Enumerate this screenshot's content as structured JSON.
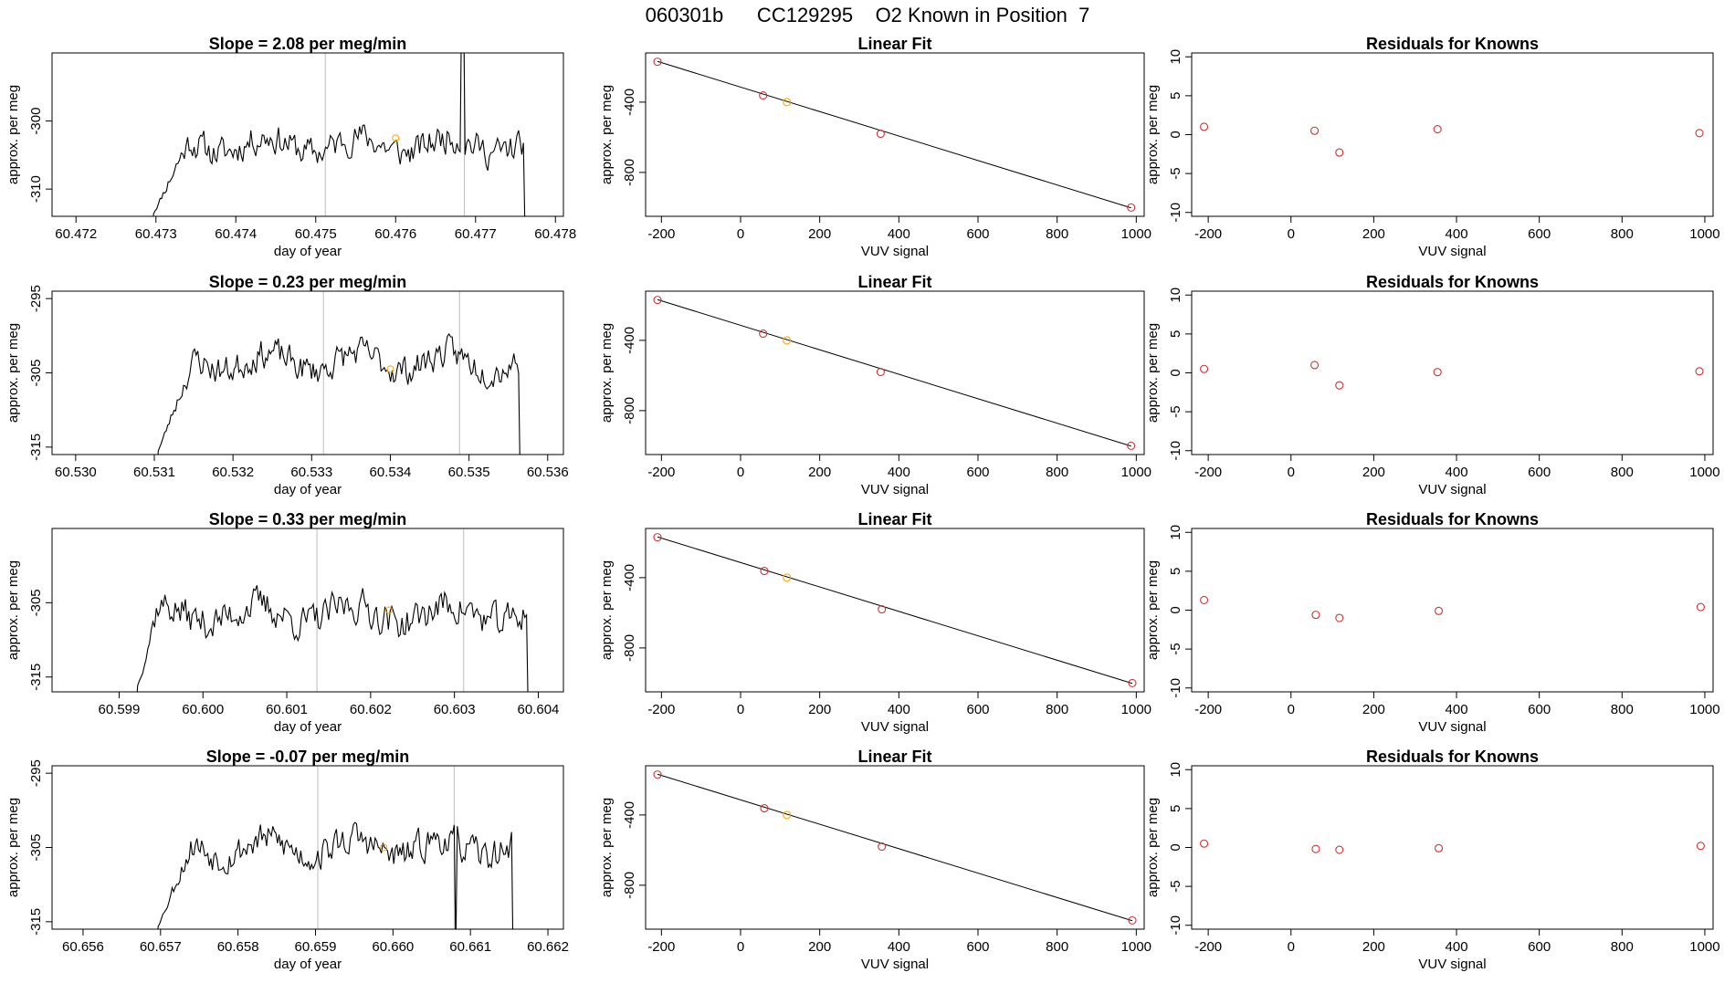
{
  "figure_title": "060301b      CC129295    O2 Known in Position  7",
  "colors": {
    "line": "#000000",
    "known": "#cd3333",
    "highlight": "#ffa500",
    "vline": "#bebebe"
  },
  "chart_data": [
    {
      "type": "line",
      "row": 0,
      "col": 0,
      "title": "Slope =  2.08  per meg/min",
      "xlabel": "day of year",
      "ylabel": "approx. per meg",
      "xlim": [
        60.4717,
        60.4781
      ],
      "ylim": [
        -314,
        -290
      ],
      "xticks": [
        "60.472",
        "60.473",
        "60.474",
        "60.475",
        "60.476",
        "60.477",
        "60.478"
      ],
      "yticks": [
        "-310",
        "-300"
      ],
      "x_start": 60.47295,
      "x_end": 60.47762,
      "baseline": -303.5,
      "noise": 2.2,
      "seed": 11,
      "ramp_end": 60.4735,
      "ramp_from": -314,
      "spike": [
        60.47683,
        -280
      ],
      "vlines": [
        60.47512,
        60.47686
      ],
      "highlight_point": [
        60.476,
        -302.5
      ]
    },
    {
      "type": "scatter",
      "row": 0,
      "col": 1,
      "title": "Linear Fit",
      "xlabel": "VUV signal",
      "ylabel": "approx. per meg",
      "xlim": [
        -240,
        1020
      ],
      "ylim": [
        -1050,
        -120
      ],
      "xticks": [
        "-200",
        "0",
        "200",
        "400",
        "600",
        "800",
        "1000"
      ],
      "yticks": [
        "-800",
        "-400"
      ],
      "x": [
        -210,
        57,
        117,
        354,
        987
      ],
      "y": [
        -170,
        -362,
        -400,
        -580,
        -1000
      ],
      "highlight_index": 2,
      "fit": [
        [
          -210,
          -168
        ],
        [
          987,
          -1002
        ]
      ]
    },
    {
      "type": "scatter",
      "row": 0,
      "col": 2,
      "title": "Residuals for Knowns",
      "xlabel": "VUV signal",
      "ylabel": "approx. per meg",
      "xlim": [
        -240,
        1020
      ],
      "ylim": [
        -10.5,
        10.5
      ],
      "xticks": [
        "-200",
        "0",
        "200",
        "400",
        "600",
        "800",
        "1000"
      ],
      "yticks": [
        "-10",
        "-5",
        "0",
        "5",
        "10"
      ],
      "x": [
        -210,
        57,
        117,
        354,
        987
      ],
      "y": [
        1.0,
        0.5,
        -2.3,
        0.7,
        0.2
      ]
    },
    {
      "type": "line",
      "row": 1,
      "col": 0,
      "title": "Slope =  0.23  per meg/min",
      "xlabel": "day of year",
      "ylabel": "approx. per meg",
      "xlim": [
        60.5297,
        60.5362
      ],
      "ylim": [
        -316,
        -294
      ],
      "xticks": [
        "60.530",
        "60.531",
        "60.532",
        "60.533",
        "60.534",
        "60.535",
        "60.536"
      ],
      "yticks": [
        "-315",
        "-305",
        "-295"
      ],
      "x_start": 60.53103,
      "x_end": 60.53565,
      "baseline": -303.5,
      "noise": 2.0,
      "seed": 23,
      "ramp_end": 60.5316,
      "ramp_from": -316,
      "vlines": [
        60.53315,
        60.53488
      ],
      "highlight_point": [
        60.534,
        -304.5
      ]
    },
    {
      "type": "scatter",
      "row": 1,
      "col": 1,
      "title": "Linear Fit",
      "xlabel": "VUV signal",
      "ylabel": "approx. per meg",
      "xlim": [
        -240,
        1020
      ],
      "ylim": [
        -1050,
        -120
      ],
      "xticks": [
        "-200",
        "0",
        "200",
        "400",
        "600",
        "800",
        "1000"
      ],
      "yticks": [
        "-800",
        "-400"
      ],
      "x": [
        -210,
        57,
        117,
        354,
        987
      ],
      "y": [
        -170,
        -362,
        -400,
        -580,
        -1000
      ],
      "highlight_index": 2,
      "fit": [
        [
          -210,
          -168
        ],
        [
          987,
          -1002
        ]
      ]
    },
    {
      "type": "scatter",
      "row": 1,
      "col": 2,
      "title": "Residuals for Knowns",
      "xlabel": "VUV signal",
      "ylabel": "approx. per meg",
      "xlim": [
        -240,
        1020
      ],
      "ylim": [
        -10.5,
        10.5
      ],
      "xticks": [
        "-200",
        "0",
        "200",
        "400",
        "600",
        "800",
        "1000"
      ],
      "yticks": [
        "-10",
        "-5",
        "0",
        "5",
        "10"
      ],
      "x": [
        -210,
        57,
        117,
        354,
        987
      ],
      "y": [
        0.5,
        1.0,
        -1.6,
        0.1,
        0.2
      ]
    },
    {
      "type": "line",
      "row": 2,
      "col": 0,
      "title": "Slope =  0.33  per meg/min",
      "xlabel": "day of year",
      "ylabel": "approx. per meg",
      "xlim": [
        60.5982,
        60.6043
      ],
      "ylim": [
        -317,
        -295
      ],
      "xticks": [
        "60.599",
        "60.600",
        "60.601",
        "60.602",
        "60.603",
        "60.604"
      ],
      "yticks": [
        "-315",
        "-305"
      ],
      "x_start": 60.5992,
      "x_end": 60.60388,
      "baseline": -306.5,
      "noise": 2.3,
      "seed": 37,
      "ramp_end": 60.5995,
      "ramp_from": -317,
      "vlines": [
        60.60136,
        60.60311
      ],
      "highlight_point": [
        60.60222,
        -306.0
      ]
    },
    {
      "type": "scatter",
      "row": 2,
      "col": 1,
      "title": "Linear Fit",
      "xlabel": "VUV signal",
      "ylabel": "approx. per meg",
      "xlim": [
        -240,
        1020
      ],
      "ylim": [
        -1050,
        -120
      ],
      "xticks": [
        "-200",
        "0",
        "200",
        "400",
        "600",
        "800",
        "1000"
      ],
      "yticks": [
        "-800",
        "-400"
      ],
      "x": [
        -210,
        60,
        117,
        357,
        990
      ],
      "y": [
        -170,
        -362,
        -400,
        -580,
        -1000
      ],
      "highlight_index": 2,
      "fit": [
        [
          -210,
          -168
        ],
        [
          990,
          -1002
        ]
      ]
    },
    {
      "type": "scatter",
      "row": 2,
      "col": 2,
      "title": "Residuals for Knowns",
      "xlabel": "VUV signal",
      "ylabel": "approx. per meg",
      "xlim": [
        -240,
        1020
      ],
      "ylim": [
        -10.5,
        10.5
      ],
      "xticks": [
        "-200",
        "0",
        "200",
        "400",
        "600",
        "800",
        "1000"
      ],
      "yticks": [
        "-10",
        "-5",
        "0",
        "5",
        "10"
      ],
      "x": [
        -210,
        60,
        117,
        357,
        990
      ],
      "y": [
        1.3,
        -0.6,
        -1.0,
        -0.1,
        0.4
      ]
    },
    {
      "type": "line",
      "row": 3,
      "col": 0,
      "title": "Slope =  -0.07  per meg/min",
      "xlabel": "day of year",
      "ylabel": "approx. per meg",
      "xlim": [
        60.6556,
        60.6622
      ],
      "ylim": [
        -316,
        -294
      ],
      "xticks": [
        "60.656",
        "60.657",
        "60.658",
        "60.659",
        "60.660",
        "60.661",
        "60.662"
      ],
      "yticks": [
        "-315",
        "-305",
        "-295"
      ],
      "x_start": 60.65695,
      "x_end": 60.66155,
      "baseline": -305.0,
      "noise": 2.1,
      "seed": 53,
      "ramp_end": 60.6575,
      "ramp_from": -316,
      "dip": [
        60.66081,
        -316
      ],
      "vlines": [
        60.65903,
        60.66079
      ],
      "highlight_point": [
        60.65988,
        -305.0
      ]
    },
    {
      "type": "scatter",
      "row": 3,
      "col": 1,
      "title": "Linear Fit",
      "xlabel": "VUV signal",
      "ylabel": "approx. per meg",
      "xlim": [
        -240,
        1020
      ],
      "ylim": [
        -1050,
        -120
      ],
      "xticks": [
        "-200",
        "0",
        "200",
        "400",
        "600",
        "800",
        "1000"
      ],
      "yticks": [
        "-800",
        "-400"
      ],
      "x": [
        -210,
        60,
        117,
        357,
        990
      ],
      "y": [
        -170,
        -362,
        -400,
        -580,
        -1000
      ],
      "highlight_index": 2,
      "fit": [
        [
          -210,
          -168
        ],
        [
          990,
          -1002
        ]
      ]
    },
    {
      "type": "scatter",
      "row": 3,
      "col": 2,
      "title": "Residuals for Knowns",
      "xlabel": "VUV signal",
      "ylabel": "approx. per meg",
      "xlim": [
        -240,
        1020
      ],
      "ylim": [
        -10.5,
        10.5
      ],
      "xticks": [
        "-200",
        "0",
        "200",
        "400",
        "600",
        "800",
        "1000"
      ],
      "yticks": [
        "-10",
        "-5",
        "0",
        "5",
        "10"
      ],
      "x": [
        -210,
        60,
        117,
        357,
        990
      ],
      "y": [
        0.5,
        -0.2,
        -0.3,
        -0.1,
        0.2
      ]
    }
  ]
}
